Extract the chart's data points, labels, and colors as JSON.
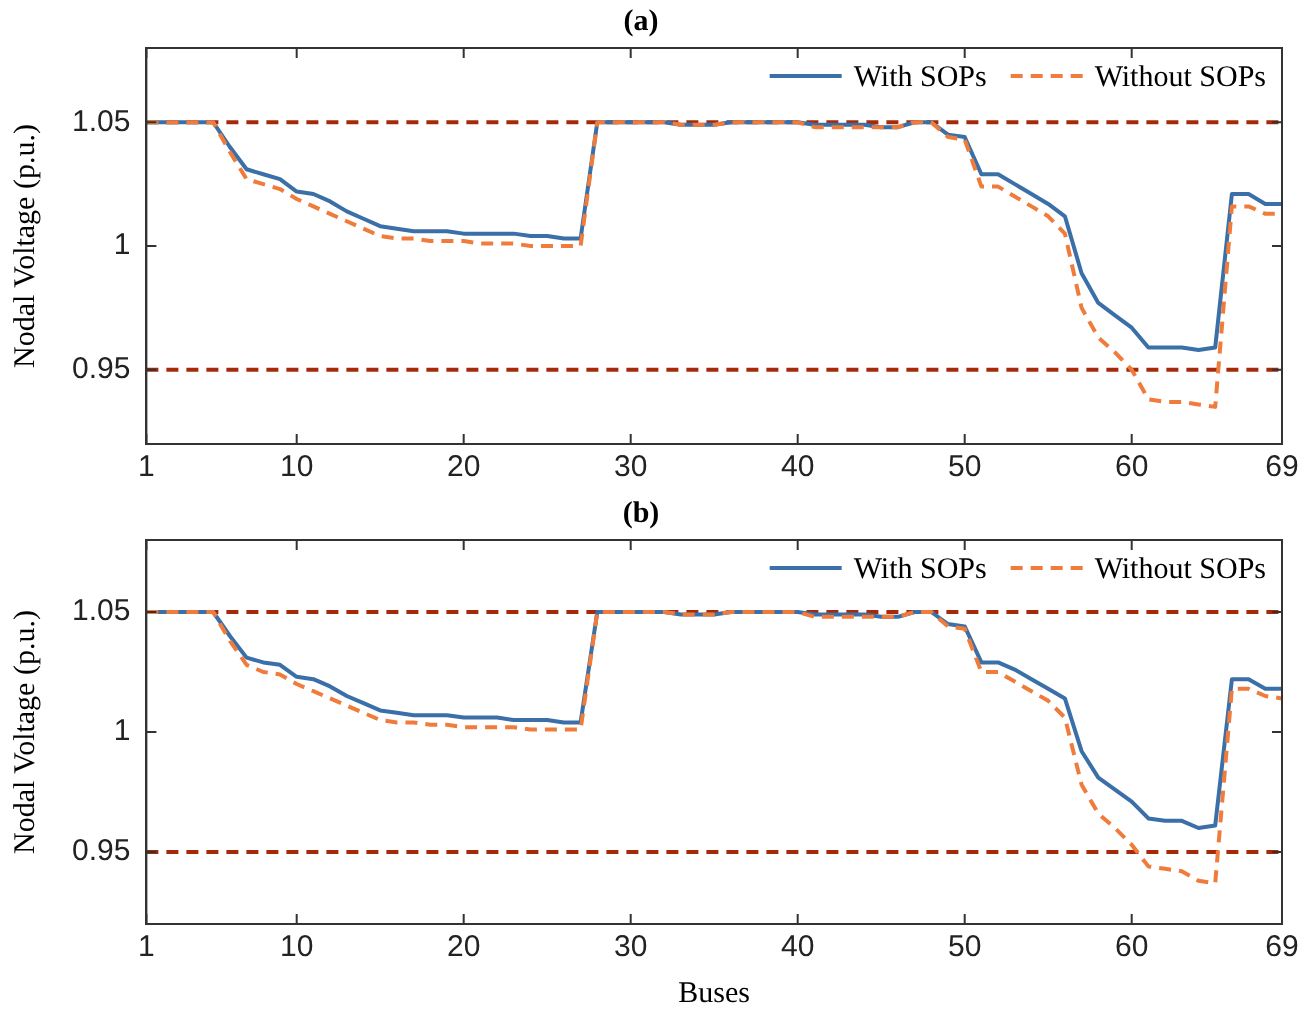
{
  "chart_data": [
    {
      "type": "line",
      "title": "(a)",
      "ylabel": "Nodal Voltage (p.u.)",
      "x": [
        1,
        2,
        3,
        4,
        5,
        6,
        7,
        8,
        9,
        10,
        11,
        12,
        13,
        14,
        15,
        16,
        17,
        18,
        19,
        20,
        21,
        22,
        23,
        24,
        25,
        26,
        27,
        28,
        29,
        30,
        31,
        32,
        33,
        34,
        35,
        36,
        37,
        38,
        39,
        40,
        41,
        42,
        43,
        44,
        45,
        46,
        47,
        48,
        49,
        50,
        51,
        52,
        53,
        54,
        55,
        56,
        57,
        58,
        59,
        60,
        61,
        62,
        63,
        64,
        65,
        66,
        67,
        68,
        69
      ],
      "xlim": [
        1,
        69
      ],
      "xticks": [
        1,
        10,
        20,
        30,
        40,
        50,
        60,
        69
      ],
      "ylim": [
        0.92,
        1.08
      ],
      "yticks": [
        0.95,
        1,
        1.05
      ],
      "legend": "top right",
      "grid": false,
      "marker": "none",
      "series": [
        {
          "name": "With SOPs",
          "color": "#3a6fa8",
          "line_style": "solid",
          "values": [
            1.05,
            1.05,
            1.05,
            1.05,
            1.05,
            1.04,
            1.031,
            1.029,
            1.027,
            1.022,
            1.021,
            1.018,
            1.014,
            1.011,
            1.008,
            1.007,
            1.006,
            1.006,
            1.006,
            1.005,
            1.005,
            1.005,
            1.005,
            1.004,
            1.004,
            1.003,
            1.003,
            1.05,
            1.05,
            1.05,
            1.05,
            1.05,
            1.049,
            1.049,
            1.049,
            1.05,
            1.05,
            1.05,
            1.05,
            1.05,
            1.049,
            1.049,
            1.049,
            1.049,
            1.048,
            1.048,
            1.05,
            1.05,
            1.045,
            1.044,
            1.029,
            1.029,
            1.025,
            1.021,
            1.017,
            1.012,
            0.989,
            0.977,
            0.972,
            0.967,
            0.959,
            0.959,
            0.959,
            0.958,
            0.959,
            1.021,
            1.021,
            1.017,
            1.017
          ]
        },
        {
          "name": "Without SOPs",
          "color": "#f07c3c",
          "line_style": "dashed",
          "values": [
            1.05,
            1.05,
            1.05,
            1.05,
            1.05,
            1.038,
            1.027,
            1.025,
            1.023,
            1.019,
            1.016,
            1.013,
            1.01,
            1.007,
            1.004,
            1.003,
            1.003,
            1.002,
            1.002,
            1.002,
            1.001,
            1.001,
            1.001,
            1.0,
            1.0,
            1.0,
            1.0,
            1.05,
            1.05,
            1.05,
            1.05,
            1.05,
            1.049,
            1.049,
            1.049,
            1.05,
            1.05,
            1.05,
            1.05,
            1.05,
            1.048,
            1.048,
            1.048,
            1.048,
            1.048,
            1.048,
            1.05,
            1.05,
            1.044,
            1.043,
            1.024,
            1.024,
            1.02,
            1.016,
            1.012,
            1.005,
            0.975,
            0.963,
            0.957,
            0.95,
            0.938,
            0.937,
            0.937,
            0.936,
            0.935,
            1.016,
            1.016,
            1.013,
            1.013
          ]
        }
      ],
      "ref_lines": [
        {
          "axis": "y",
          "value": 1.05,
          "color": "#a52a0a",
          "line_style": "dashed"
        },
        {
          "axis": "y",
          "value": 0.95,
          "color": "#a52a0a",
          "line_style": "dashed"
        }
      ]
    },
    {
      "type": "line",
      "title": "(b)",
      "xlabel": "Buses",
      "ylabel": "Nodal Voltage (p.u.)",
      "x": [
        1,
        2,
        3,
        4,
        5,
        6,
        7,
        8,
        9,
        10,
        11,
        12,
        13,
        14,
        15,
        16,
        17,
        18,
        19,
        20,
        21,
        22,
        23,
        24,
        25,
        26,
        27,
        28,
        29,
        30,
        31,
        32,
        33,
        34,
        35,
        36,
        37,
        38,
        39,
        40,
        41,
        42,
        43,
        44,
        45,
        46,
        47,
        48,
        49,
        50,
        51,
        52,
        53,
        54,
        55,
        56,
        57,
        58,
        59,
        60,
        61,
        62,
        63,
        64,
        65,
        66,
        67,
        68,
        69
      ],
      "xlim": [
        1,
        69
      ],
      "xticks": [
        1,
        10,
        20,
        30,
        40,
        50,
        60,
        69
      ],
      "ylim": [
        0.92,
        1.08
      ],
      "yticks": [
        0.95,
        1,
        1.05
      ],
      "legend": "top right",
      "grid": false,
      "marker": "none",
      "series": [
        {
          "name": "With SOPs",
          "color": "#3a6fa8",
          "line_style": "solid",
          "values": [
            1.05,
            1.05,
            1.05,
            1.05,
            1.05,
            1.04,
            1.031,
            1.029,
            1.028,
            1.023,
            1.022,
            1.019,
            1.015,
            1.012,
            1.009,
            1.008,
            1.007,
            1.007,
            1.007,
            1.006,
            1.006,
            1.006,
            1.005,
            1.005,
            1.005,
            1.004,
            1.004,
            1.05,
            1.05,
            1.05,
            1.05,
            1.05,
            1.049,
            1.049,
            1.049,
            1.05,
            1.05,
            1.05,
            1.05,
            1.05,
            1.049,
            1.049,
            1.049,
            1.049,
            1.048,
            1.048,
            1.05,
            1.05,
            1.045,
            1.044,
            1.029,
            1.029,
            1.026,
            1.022,
            1.018,
            1.014,
            0.992,
            0.981,
            0.976,
            0.971,
            0.964,
            0.963,
            0.963,
            0.96,
            0.961,
            1.022,
            1.022,
            1.018,
            1.018
          ]
        },
        {
          "name": "Without SOPs",
          "color": "#f07c3c",
          "line_style": "dashed",
          "values": [
            1.05,
            1.05,
            1.05,
            1.05,
            1.05,
            1.038,
            1.028,
            1.025,
            1.024,
            1.02,
            1.017,
            1.014,
            1.011,
            1.008,
            1.005,
            1.004,
            1.004,
            1.003,
            1.003,
            1.002,
            1.002,
            1.002,
            1.002,
            1.001,
            1.001,
            1.001,
            1.001,
            1.05,
            1.05,
            1.05,
            1.05,
            1.05,
            1.049,
            1.049,
            1.049,
            1.05,
            1.05,
            1.05,
            1.05,
            1.05,
            1.048,
            1.048,
            1.048,
            1.048,
            1.048,
            1.048,
            1.05,
            1.05,
            1.044,
            1.043,
            1.025,
            1.025,
            1.021,
            1.017,
            1.013,
            1.006,
            0.978,
            0.966,
            0.96,
            0.953,
            0.944,
            0.943,
            0.942,
            0.938,
            0.937,
            1.018,
            1.018,
            1.015,
            1.014
          ]
        }
      ],
      "ref_lines": [
        {
          "axis": "y",
          "value": 1.05,
          "color": "#a52a0a",
          "line_style": "dashed"
        },
        {
          "axis": "y",
          "value": 0.95,
          "color": "#a52a0a",
          "line_style": "dashed"
        }
      ]
    }
  ]
}
